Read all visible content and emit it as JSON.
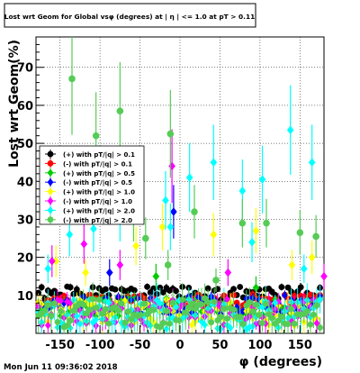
{
  "title": "Lost wrt Geom for Global vsφ (degrees) at | η | <= 1.0 at pT > 0.11",
  "timestamp": "Mon Jun 11 09:36:02 2018",
  "chart_data": {
    "type": "scatter",
    "xlabel": "φ (degrees)",
    "ylabel": "Lost wrt Geom(%)",
    "xlim": [
      -180,
      180
    ],
    "ylim": [
      0,
      78
    ],
    "xticks": [
      -150,
      -100,
      -50,
      0,
      50,
      100,
      150
    ],
    "yticks": [
      10,
      20,
      30,
      40,
      50,
      60,
      70
    ],
    "grid": true,
    "legend_position": "left-middle",
    "series": [
      {
        "name": "(+) with pT/|q| > 0.1",
        "color": "#000000",
        "marker": "circle",
        "base": 10.5,
        "amp": 1.8,
        "err": 0.7,
        "seed": 1,
        "spikes": []
      },
      {
        "name": "(-) with pT/|q| > 0.1",
        "color": "#ff0000",
        "marker": "circle",
        "base": 8.5,
        "amp": 1.8,
        "err": 0.7,
        "seed": 2,
        "spikes": []
      },
      {
        "name": "(+) with pT/|q| > 0.5",
        "color": "#00cc00",
        "marker": "diamond",
        "base": 7.0,
        "amp": 2.5,
        "err": 1.2,
        "seed": 3,
        "spikes": [
          [
            -30,
            15
          ],
          [
            95,
            12
          ]
        ]
      },
      {
        "name": "(-) with pT/|q| > 0.5",
        "color": "#0000ff",
        "marker": "diamond",
        "base": 7.5,
        "amp": 2.5,
        "err": 1.2,
        "seed": 4,
        "spikes": [
          [
            -8,
            32
          ],
          [
            -88,
            16
          ]
        ]
      },
      {
        "name": "(+) with pT/|q| > 1.0",
        "color": "#ffff00",
        "marker": "diamond",
        "base": 5.5,
        "amp": 3.5,
        "err": 2.0,
        "seed": 5,
        "spikes": [
          [
            -155,
            19
          ],
          [
            -118,
            16
          ],
          [
            -55,
            23
          ],
          [
            -22,
            28
          ],
          [
            42,
            26
          ],
          [
            95,
            27
          ],
          [
            140,
            18
          ],
          [
            165,
            20
          ]
        ]
      },
      {
        "name": "(-) with pT/|q| > 1.0",
        "color": "#ff00ff",
        "marker": "diamond",
        "base": 5.5,
        "amp": 3.5,
        "err": 2.0,
        "seed": 6,
        "spikes": [
          [
            -120,
            23.5
          ],
          [
            -10,
            44
          ],
          [
            -160,
            19
          ],
          [
            -75,
            18
          ],
          [
            60,
            16
          ],
          [
            180,
            15
          ]
        ]
      },
      {
        "name": "(+) with pT/|q| > 2.0",
        "color": "#00ffff",
        "marker": "diamond",
        "base": 5.0,
        "amp": 4.0,
        "err": 3.0,
        "seed": 7,
        "spikes": [
          [
            -138,
            26
          ],
          [
            -108,
            27.5
          ],
          [
            -75,
            31
          ],
          [
            -18,
            35
          ],
          [
            -12,
            28
          ],
          [
            12,
            41
          ],
          [
            42,
            45
          ],
          [
            78,
            37.5
          ],
          [
            90,
            24
          ],
          [
            103,
            40.5
          ],
          [
            138,
            53.5
          ],
          [
            165,
            45
          ],
          [
            -165,
            17
          ],
          [
            155,
            17
          ]
        ]
      },
      {
        "name": "(-) with pT/|q| > 2.0",
        "color": "#55cc55",
        "marker": "circle",
        "base": 5.5,
        "amp": 4.0,
        "err": 3.0,
        "seed": 8,
        "spikes": [
          [
            -135,
            67
          ],
          [
            -105,
            52
          ],
          [
            -75,
            58.5
          ],
          [
            -12,
            52.5
          ],
          [
            -58,
            31
          ],
          [
            -43,
            25
          ],
          [
            18,
            32
          ],
          [
            78,
            29
          ],
          [
            108,
            29
          ],
          [
            150,
            26.5
          ],
          [
            170,
            25.5
          ],
          [
            -15,
            18
          ],
          [
            45,
            14
          ]
        ]
      }
    ]
  }
}
